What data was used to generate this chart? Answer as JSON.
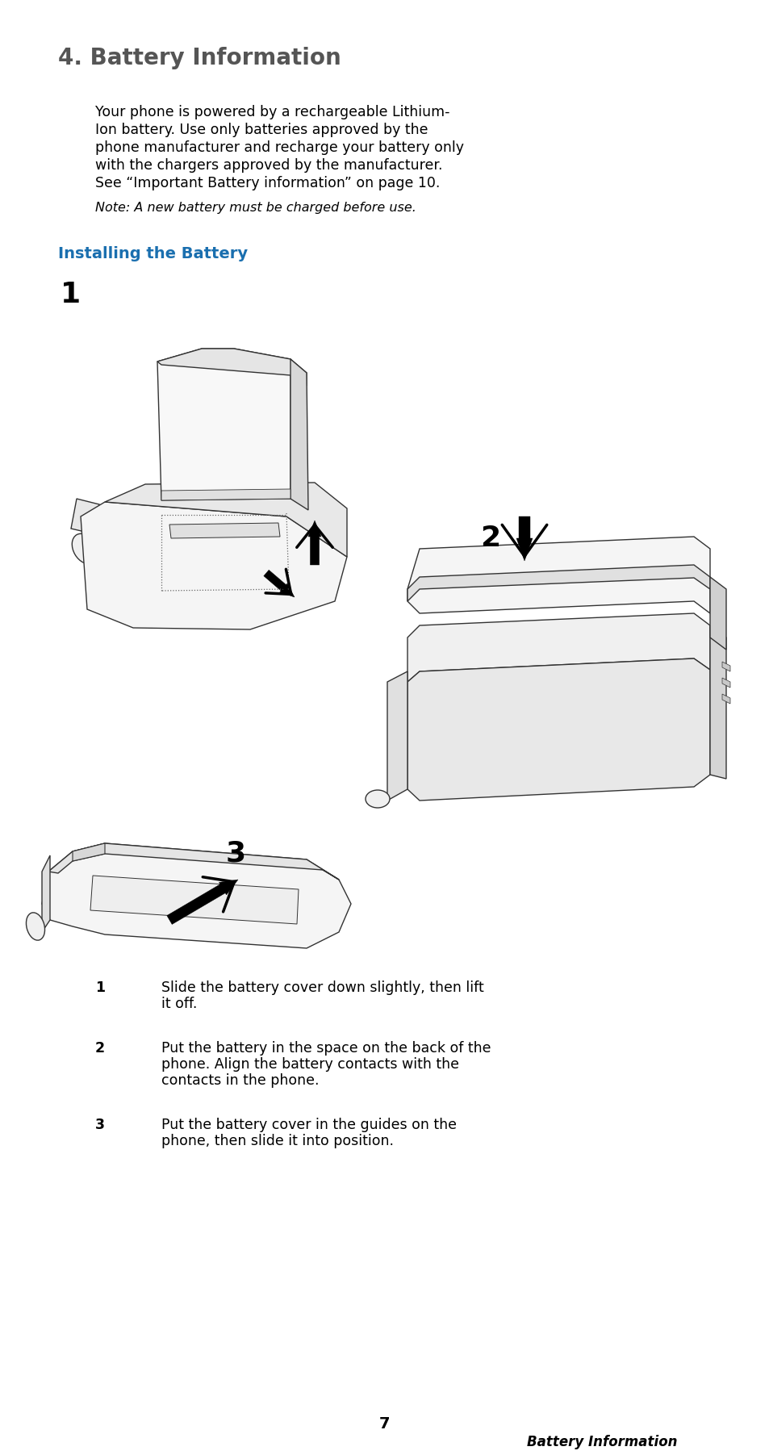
{
  "bg_color": "#ffffff",
  "title": "4. Battery Information",
  "title_color": "#555555",
  "title_fontsize": 20,
  "body_lines": [
    "Your phone is powered by a rechargeable Lithium-",
    "Ion battery. Use only batteries approved by the",
    "phone manufacturer and recharge your battery only",
    "with the chargers approved by the manufacturer.",
    "See “Important Battery information” on page 10."
  ],
  "body_fontsize": 12.5,
  "note_text": "Note: A new battery must be charged before use.",
  "note_fontsize": 11.5,
  "section_title": "Installing the Battery",
  "section_title_color": "#1a6faf",
  "section_title_fontsize": 14,
  "desc_fontsize": 12.5,
  "desc_items": [
    {
      "num": "1",
      "lines": [
        "Slide the battery cover down slightly, then lift",
        "it off."
      ]
    },
    {
      "num": "2",
      "lines": [
        "Put the battery in the space on the back of the",
        "phone. Align the battery contacts with the",
        "contacts in the phone."
      ]
    },
    {
      "num": "3",
      "lines": [
        "Put the battery cover in the guides on the",
        "phone, then slide it into position."
      ]
    }
  ],
  "page_num": "7",
  "page_footer": "Battery Information"
}
